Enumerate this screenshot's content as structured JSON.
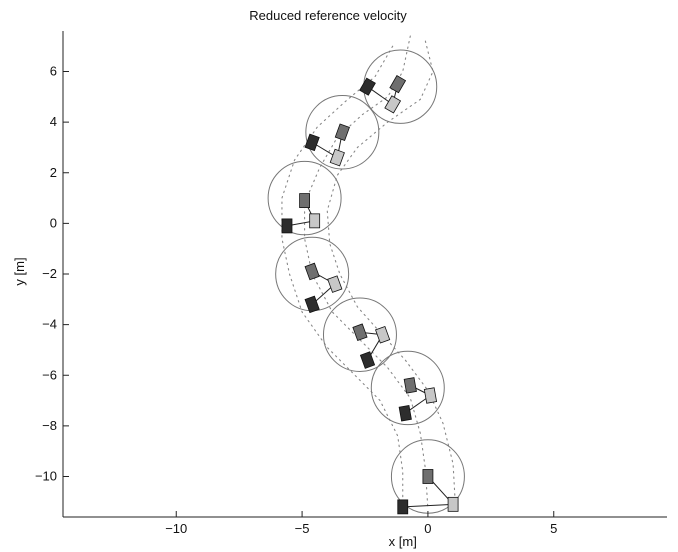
{
  "chart_data": {
    "type": "scatter",
    "title": "Reduced reference velocity",
    "xlabel": "x [m]",
    "ylabel": "y [m]",
    "xlim": [
      -14.5,
      9.5
    ],
    "ylim": [
      -11.6,
      7.6
    ],
    "xticks": [
      -10,
      -5,
      0,
      5
    ],
    "yticks": [
      -10,
      -8,
      -6,
      -4,
      -2,
      0,
      2,
      4,
      6
    ],
    "grid": false,
    "colors": {
      "axis": "#222222",
      "circle": "#777777",
      "path": "#888888",
      "link": "#222222",
      "robot_dark": "#2d2d2d",
      "robot_mid": "#6f6f6f",
      "robot_light": "#c7c7c7"
    },
    "formations": [
      {
        "center": [
          -1.1,
          5.4
        ],
        "radius": 1.45,
        "robots": [
          {
            "x": -2.4,
            "y": 5.4,
            "angle": 30,
            "shade": "dark"
          },
          {
            "x": -1.2,
            "y": 5.5,
            "angle": 30,
            "shade": "mid"
          },
          {
            "x": -1.4,
            "y": 4.7,
            "angle": 30,
            "shade": "light"
          }
        ]
      },
      {
        "center": [
          -3.4,
          3.6
        ],
        "radius": 1.45,
        "robots": [
          {
            "x": -4.6,
            "y": 3.2,
            "angle": 20,
            "shade": "dark"
          },
          {
            "x": -3.4,
            "y": 3.6,
            "angle": 20,
            "shade": "mid"
          },
          {
            "x": -3.6,
            "y": 2.6,
            "angle": 20,
            "shade": "light"
          }
        ]
      },
      {
        "center": [
          -4.9,
          1.0
        ],
        "radius": 1.45,
        "robots": [
          {
            "x": -5.6,
            "y": -0.1,
            "angle": 0,
            "shade": "dark"
          },
          {
            "x": -4.9,
            "y": 0.9,
            "angle": 0,
            "shade": "mid"
          },
          {
            "x": -4.5,
            "y": 0.1,
            "angle": 0,
            "shade": "light"
          }
        ]
      },
      {
        "center": [
          -4.6,
          -2.0
        ],
        "radius": 1.45,
        "robots": [
          {
            "x": -4.6,
            "y": -3.2,
            "angle": -20,
            "shade": "dark"
          },
          {
            "x": -4.6,
            "y": -1.9,
            "angle": -20,
            "shade": "mid"
          },
          {
            "x": -3.7,
            "y": -2.4,
            "angle": -20,
            "shade": "light"
          }
        ]
      },
      {
        "center": [
          -2.7,
          -4.4
        ],
        "radius": 1.45,
        "robots": [
          {
            "x": -2.4,
            "y": -5.4,
            "angle": -20,
            "shade": "dark"
          },
          {
            "x": -2.7,
            "y": -4.3,
            "angle": -20,
            "shade": "mid"
          },
          {
            "x": -1.8,
            "y": -4.4,
            "angle": -20,
            "shade": "light"
          }
        ]
      },
      {
        "center": [
          -0.8,
          -6.5
        ],
        "radius": 1.45,
        "robots": [
          {
            "x": -0.9,
            "y": -7.5,
            "angle": -10,
            "shade": "dark"
          },
          {
            "x": -0.7,
            "y": -6.4,
            "angle": -10,
            "shade": "mid"
          },
          {
            "x": 0.1,
            "y": -6.8,
            "angle": -10,
            "shade": "light"
          }
        ]
      },
      {
        "center": [
          0.0,
          -10.0
        ],
        "radius": 1.45,
        "robots": [
          {
            "x": -1.0,
            "y": -11.2,
            "angle": 0,
            "shade": "dark"
          },
          {
            "x": 0.0,
            "y": -10.0,
            "angle": 0,
            "shade": "mid"
          },
          {
            "x": 1.0,
            "y": -11.1,
            "angle": 0,
            "shade": "light"
          }
        ]
      }
    ],
    "paths": [
      [
        [
          -0.7,
          7.4
        ],
        [
          -1.0,
          6.0
        ],
        [
          -1.6,
          5.0
        ],
        [
          -2.6,
          4.3
        ],
        [
          -3.6,
          3.4
        ],
        [
          -4.3,
          2.2
        ],
        [
          -4.9,
          0.8
        ],
        [
          -4.9,
          -0.6
        ],
        [
          -4.6,
          -2.0
        ],
        [
          -3.8,
          -3.5
        ],
        [
          -2.7,
          -4.6
        ],
        [
          -1.6,
          -5.7
        ],
        [
          -0.7,
          -6.9
        ],
        [
          -0.3,
          -8.3
        ],
        [
          -0.1,
          -9.7
        ],
        [
          0.0,
          -11.3
        ]
      ],
      [
        [
          -0.1,
          7.2
        ],
        [
          0.2,
          6.0
        ],
        [
          -0.3,
          4.9
        ],
        [
          -1.6,
          4.0
        ],
        [
          -2.8,
          3.0
        ],
        [
          -3.6,
          1.9
        ],
        [
          -4.0,
          0.5
        ],
        [
          -3.9,
          -0.8
        ],
        [
          -3.5,
          -2.0
        ],
        [
          -2.8,
          -3.3
        ],
        [
          -1.9,
          -4.3
        ],
        [
          -0.9,
          -5.4
        ],
        [
          0.0,
          -6.6
        ],
        [
          0.6,
          -7.9
        ],
        [
          1.0,
          -9.5
        ],
        [
          1.1,
          -11.3
        ]
      ],
      [
        [
          -1.4,
          7.0
        ],
        [
          -2.1,
          5.8
        ],
        [
          -3.3,
          4.8
        ],
        [
          -4.4,
          3.8
        ],
        [
          -5.3,
          2.5
        ],
        [
          -5.8,
          1.0
        ],
        [
          -5.8,
          -0.6
        ],
        [
          -5.5,
          -2.0
        ],
        [
          -5.0,
          -3.5
        ],
        [
          -4.0,
          -4.9
        ],
        [
          -3.0,
          -5.9
        ],
        [
          -1.9,
          -7.0
        ],
        [
          -1.2,
          -8.4
        ],
        [
          -1.0,
          -9.8
        ],
        [
          -1.0,
          -11.3
        ]
      ]
    ]
  }
}
